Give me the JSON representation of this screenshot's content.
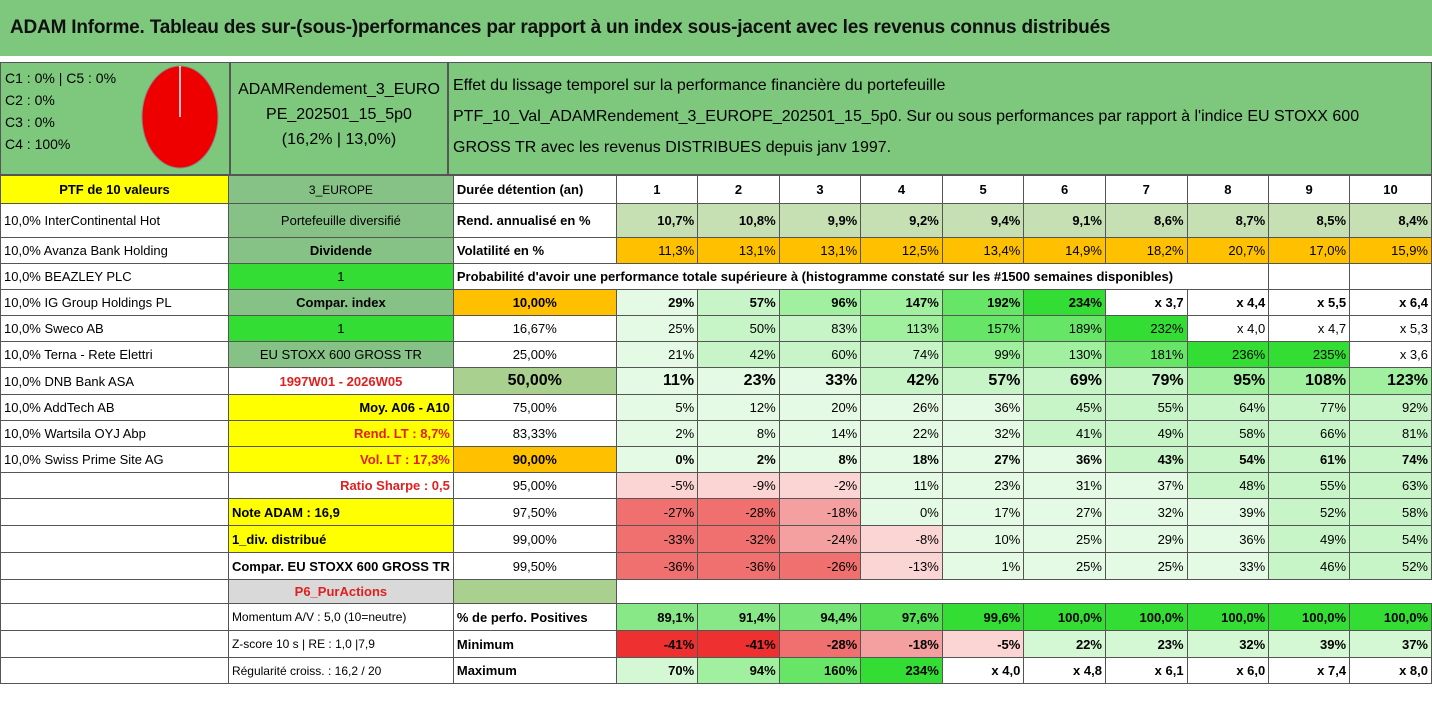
{
  "title": "ADAM Informe. Tableau des sur-(sous-)performances par rapport à un index sous-jacent avec les revenus connus distribués",
  "legend": [
    "C1 : 0% | C5 : 0%",
    "C2 : 0%",
    "C3 : 0%",
    "C4 : 100%"
  ],
  "pie_color": "#ee0000",
  "portfolio": {
    "name_line1": "ADAMRendement_3_EURO",
    "name_line2": "PE_202501_15_5p0",
    "perf": "(16,2% | 13,0%)",
    "desc_line1": "Effet du lissage temporel sur la performance financière du portefeuille",
    "desc_line2": "PTF_10_Val_ADAMRendement_3_EUROPE_202501_15_5p0. Sur ou sous performances par rapport à l'indice EU STOXX 600",
    "desc_line3": "GROSS TR avec les revenus DISTRIBUES depuis janv 1997."
  },
  "ptf_label": "PTF de 10 valeurs",
  "holdings": [
    "10,0% InterContinental Hot",
    "10,0% Avanza Bank Holding",
    "10,0% BEAZLEY PLC",
    "10,0% IG Group Holdings PL",
    "10,0% Sweco AB",
    "10,0% Terna - Rete Elettri",
    "10,0% DNB Bank ASA",
    "10,0% AddTech AB",
    "10,0% Wartsila OYJ Abp",
    "10,0% Swiss Prime Site AG"
  ],
  "params": [
    "3_EUROPE",
    "Portefeuille diversifié",
    "Dividende",
    "1",
    "Compar. index",
    "1",
    "EU STOXX 600 GROSS TR",
    "1997W01 - 2026W05",
    "Moy. A06 - A10",
    "Rend. LT : 8,7%",
    "Vol. LT : 17,3%",
    "Ratio Sharpe : 0,5",
    "Note ADAM : 16,9",
    "1_div. distribué",
    "Compar. EU STOXX 600 GROSS TR",
    "P6_PurActions",
    "Momentum A/V : 5,0 (10=neutre)",
    "Z-score 10 s | RE : 1,0 |7,9",
    "Régularité croiss. : 16,2 / 20"
  ],
  "row_labels": {
    "duration": "Durée détention (an)",
    "rend": "Rend. annualisé en %",
    "vol": "Volatilité en %",
    "prob": "Probabilité d'avoir une performance totale supérieure à (histogramme constaté sur les #1500 semaines disponibles)",
    "pos": "% de perfo. Positives",
    "min": "Minimum",
    "max": "Maximum"
  },
  "years": [
    "1",
    "2",
    "3",
    "4",
    "5",
    "6",
    "7",
    "8",
    "9",
    "10"
  ],
  "rend": [
    "10,7%",
    "10,8%",
    "9,9%",
    "9,2%",
    "9,4%",
    "9,1%",
    "8,6%",
    "8,7%",
    "8,5%",
    "8,4%"
  ],
  "vol": [
    "11,3%",
    "13,1%",
    "13,1%",
    "12,5%",
    "13,4%",
    "14,9%",
    "18,2%",
    "20,7%",
    "17,0%",
    "15,9%"
  ],
  "prob_rows": [
    {
      "thr": "10,00%",
      "vals": [
        "29%",
        "57%",
        "96%",
        "147%",
        "192%",
        "234%",
        "x 3,7",
        "x 4,4",
        "x 5,5",
        "x 6,4"
      ]
    },
    {
      "thr": "16,67%",
      "vals": [
        "25%",
        "50%",
        "83%",
        "113%",
        "157%",
        "189%",
        "232%",
        "x 4,0",
        "x 4,7",
        "x 5,3"
      ]
    },
    {
      "thr": "25,00%",
      "vals": [
        "21%",
        "42%",
        "60%",
        "74%",
        "99%",
        "130%",
        "181%",
        "236%",
        "235%",
        "x 3,6"
      ]
    },
    {
      "thr": "50,00%",
      "vals": [
        "11%",
        "23%",
        "33%",
        "42%",
        "57%",
        "69%",
        "79%",
        "95%",
        "108%",
        "123%"
      ]
    },
    {
      "thr": "75,00%",
      "vals": [
        "5%",
        "12%",
        "20%",
        "26%",
        "36%",
        "45%",
        "55%",
        "64%",
        "77%",
        "92%"
      ]
    },
    {
      "thr": "83,33%",
      "vals": [
        "2%",
        "8%",
        "14%",
        "22%",
        "32%",
        "41%",
        "49%",
        "58%",
        "66%",
        "81%"
      ]
    },
    {
      "thr": "90,00%",
      "vals": [
        "0%",
        "2%",
        "8%",
        "18%",
        "27%",
        "36%",
        "43%",
        "54%",
        "61%",
        "74%"
      ]
    },
    {
      "thr": "95,00%",
      "vals": [
        "-5%",
        "-9%",
        "-2%",
        "11%",
        "23%",
        "31%",
        "37%",
        "48%",
        "55%",
        "63%"
      ]
    },
    {
      "thr": "97,50%",
      "vals": [
        "-27%",
        "-28%",
        "-18%",
        "0%",
        "17%",
        "27%",
        "32%",
        "39%",
        "52%",
        "58%"
      ]
    },
    {
      "thr": "99,00%",
      "vals": [
        "-33%",
        "-32%",
        "-24%",
        "-8%",
        "10%",
        "25%",
        "29%",
        "36%",
        "49%",
        "54%"
      ]
    },
    {
      "thr": "99,50%",
      "vals": [
        "-36%",
        "-36%",
        "-26%",
        "-13%",
        "1%",
        "25%",
        "25%",
        "33%",
        "46%",
        "52%"
      ]
    }
  ],
  "pos": [
    "89,1%",
    "91,4%",
    "94,4%",
    "97,6%",
    "99,6%",
    "100,0%",
    "100,0%",
    "100,0%",
    "100,0%",
    "100,0%"
  ],
  "min": [
    "-41%",
    "-41%",
    "-28%",
    "-18%",
    "-5%",
    "22%",
    "23%",
    "32%",
    "39%",
    "37%"
  ],
  "max": [
    "70%",
    "94%",
    "160%",
    "234%",
    "x 4,0",
    "x 4,8",
    "x 6,1",
    "x 6,0",
    "x 7,4",
    "x 8,0"
  ],
  "colors": {
    "header_green": "#7ec87e",
    "param_green": "#86c286",
    "bright_green": "#33dd33",
    "yellow": "#ffff00",
    "orange": "#ffc000",
    "label_red": "#e02020"
  }
}
